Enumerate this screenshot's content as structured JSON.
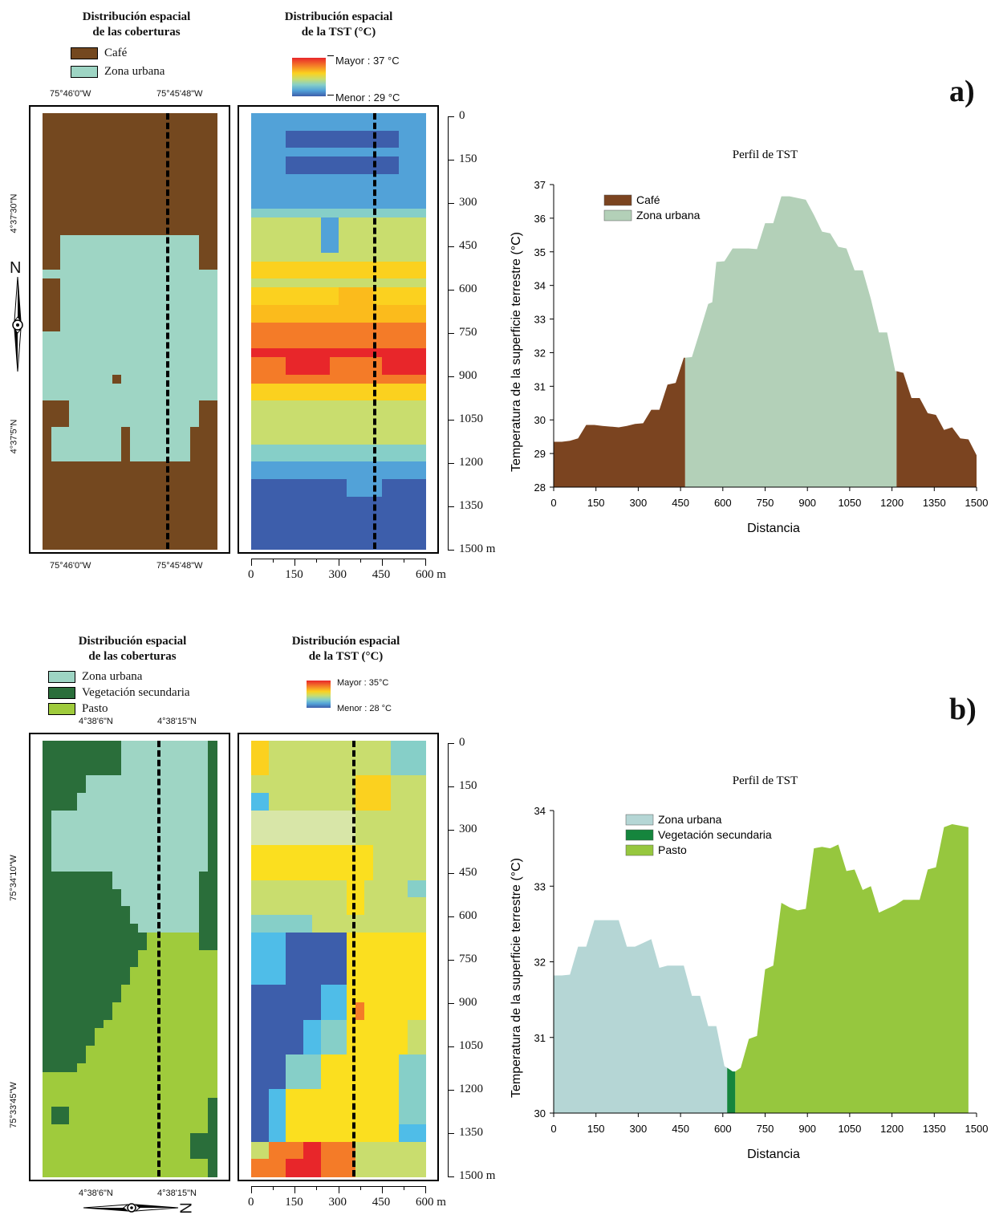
{
  "colors": {
    "cafe": "#74481f",
    "urbana": "#9ed5c4",
    "veg": "#2a6e3a",
    "pasto": "#9fcb3c",
    "profile_cafe": "#7b4420",
    "profile_urbana_a": "#b3d0b8",
    "profile_urbana_b": "#b5d6d5",
    "profile_veg": "#15853d",
    "profile_pasto": "#96c73e"
  },
  "panel_a": {
    "tag": "a)",
    "cover_title_1": "Distribución espacial",
    "cover_title_2": "de las coberturas",
    "tst_title_1": "Distribución espacial",
    "tst_title_2": "de la TST (°C)",
    "legend": [
      {
        "label": "Café",
        "color_key": "cafe"
      },
      {
        "label": "Zona urbana",
        "color_key": "urbana"
      }
    ],
    "ramp_max": "Mayor : 37 °C",
    "ramp_min": "Menor : 29 °C",
    "top_coords": [
      "75°46'0\"W",
      "75°45'48\"W"
    ],
    "bottom_coords": [
      "75°46'0\"W",
      "75°45'48\"W"
    ],
    "left_coords": [
      "4°37'30\"N",
      "4°37'5\"N"
    ],
    "north_label": "N",
    "dist_ticks": [
      "0",
      "150",
      "300",
      "450",
      "600",
      "750",
      "900",
      "1050",
      "1200",
      "1350",
      "1500"
    ],
    "dist_unit": "m",
    "x_ticks": [
      "0",
      "150",
      "300",
      "450",
      "600"
    ],
    "x_unit": "m"
  },
  "panel_b": {
    "tag": "b)",
    "cover_title_1": "Distribución espacial",
    "cover_title_2": "de las coberturas",
    "tst_title_1": "Distribución espacial",
    "tst_title_2": "de la TST (°C)",
    "legend": [
      {
        "label": "Zona urbana",
        "color_key": "urbana"
      },
      {
        "label": "Vegetación secundaria",
        "color_key": "veg"
      },
      {
        "label": "Pasto",
        "color_key": "pasto"
      }
    ],
    "ramp_max": "Mayor : 35°C",
    "ramp_min": "Menor : 28 °C",
    "top_coords": [
      "4°38'6\"N",
      "4°38'15\"N"
    ],
    "bottom_coords": [
      "4°38'6\"N",
      "4°38'15\"N"
    ],
    "left_coords": [
      "75°34'10\"W",
      "75°33'45\"W"
    ],
    "north_label": "N",
    "dist_ticks": [
      "0",
      "150",
      "300",
      "450",
      "600",
      "750",
      "900",
      "1050",
      "1200",
      "1350",
      "1500"
    ],
    "dist_unit": "m",
    "x_ticks": [
      "0",
      "150",
      "300",
      "450",
      "600"
    ],
    "x_unit": "m"
  },
  "chart_data": [
    {
      "type": "area",
      "title": "Perfil de TST",
      "xlabel": "Distancia",
      "ylabel": "Temperatura de la superficie terrestre (°C)",
      "xlim": [
        0,
        1500
      ],
      "ylim": [
        28,
        37
      ],
      "x_ticks": [
        0,
        150,
        300,
        450,
        600,
        750,
        900,
        1050,
        1200,
        1350,
        1500
      ],
      "y_ticks": [
        28,
        29,
        30,
        31,
        32,
        33,
        34,
        35,
        36,
        37
      ],
      "legend_position": "top-left",
      "series": [
        {
          "name": "Café",
          "color_key": "profile_cafe",
          "points": [
            [
              0,
              29.35
            ],
            [
              30,
              29.35
            ],
            [
              60,
              29.38
            ],
            [
              90,
              29.45
            ],
            [
              120,
              29.85
            ],
            [
              150,
              29.85
            ],
            [
              180,
              29.82
            ],
            [
              210,
              29.8
            ],
            [
              240,
              29.78
            ],
            [
              270,
              29.82
            ],
            [
              300,
              29.88
            ],
            [
              330,
              29.9
            ],
            [
              360,
              30.3
            ],
            [
              390,
              30.3
            ],
            [
              420,
              31.05
            ],
            [
              450,
              31.1
            ],
            [
              480,
              31.85
            ],
            [
              485,
              31.85
            ]
          ]
        },
        {
          "name": "Zona urbana",
          "color_key": "profile_urbana_a",
          "points": [
            [
              485,
              31.85
            ],
            [
              510,
              31.87
            ],
            [
              540,
              32.65
            ],
            [
              570,
              33.45
            ],
            [
              585,
              33.5
            ],
            [
              600,
              34.7
            ],
            [
              630,
              34.72
            ],
            [
              660,
              35.1
            ],
            [
              690,
              35.1
            ],
            [
              720,
              35.1
            ],
            [
              750,
              35.08
            ],
            [
              780,
              35.85
            ],
            [
              810,
              35.85
            ],
            [
              840,
              36.65
            ],
            [
              870,
              36.65
            ],
            [
              900,
              36.6
            ],
            [
              930,
              36.55
            ],
            [
              960,
              36.1
            ],
            [
              990,
              35.6
            ],
            [
              1020,
              35.55
            ],
            [
              1050,
              35.15
            ],
            [
              1080,
              35.1
            ],
            [
              1110,
              34.45
            ],
            [
              1140,
              34.45
            ],
            [
              1170,
              33.6
            ],
            [
              1200,
              32.6
            ],
            [
              1230,
              32.6
            ],
            [
              1260,
              31.45
            ],
            [
              1265,
              31.45
            ]
          ]
        },
        {
          "name": "Café",
          "color_key": "profile_cafe",
          "points": [
            [
              1265,
              31.45
            ],
            [
              1290,
              31.4
            ],
            [
              1320,
              30.65
            ],
            [
              1350,
              30.65
            ],
            [
              1380,
              30.2
            ],
            [
              1410,
              30.15
            ],
            [
              1440,
              29.7
            ],
            [
              1470,
              29.78
            ],
            [
              1500,
              29.45
            ],
            [
              1530,
              29.42
            ],
            [
              1560,
              28.95
            ]
          ]
        }
      ]
    },
    {
      "type": "area",
      "title": "Perfil de TST",
      "xlabel": "Distancia",
      "ylabel": "Temperatura de la superficie terrestre (°C)",
      "xlim": [
        0,
        1500
      ],
      "ylim": [
        30,
        34
      ],
      "x_ticks": [
        0,
        150,
        300,
        450,
        600,
        750,
        900,
        1050,
        1200,
        1350,
        1500
      ],
      "y_ticks": [
        30,
        31,
        32,
        33,
        34
      ],
      "legend_position": "top-center",
      "series": [
        {
          "name": "Zona urbana",
          "color_key": "profile_urbana_b",
          "points": [
            [
              0,
              31.82
            ],
            [
              30,
              31.82
            ],
            [
              60,
              31.83
            ],
            [
              90,
              32.2
            ],
            [
              120,
              32.2
            ],
            [
              150,
              32.55
            ],
            [
              180,
              32.55
            ],
            [
              210,
              32.55
            ],
            [
              240,
              32.55
            ],
            [
              270,
              32.2
            ],
            [
              300,
              32.2
            ],
            [
              330,
              32.25
            ],
            [
              360,
              32.3
            ],
            [
              390,
              31.92
            ],
            [
              420,
              31.95
            ],
            [
              450,
              31.95
            ],
            [
              480,
              31.95
            ],
            [
              510,
              31.55
            ],
            [
              540,
              31.55
            ],
            [
              570,
              31.15
            ],
            [
              600,
              31.15
            ],
            [
              630,
              30.62
            ],
            [
              640,
              30.6
            ]
          ]
        },
        {
          "name": "Vegetación secundaria",
          "color_key": "profile_veg",
          "points": [
            [
              640,
              30.6
            ],
            [
              660,
              30.55
            ],
            [
              670,
              30.55
            ]
          ]
        },
        {
          "name": "Pasto",
          "color_key": "profile_pasto",
          "points": [
            [
              670,
              30.55
            ],
            [
              690,
              30.6
            ],
            [
              720,
              30.98
            ],
            [
              750,
              31.02
            ],
            [
              780,
              31.9
            ],
            [
              810,
              31.95
            ],
            [
              840,
              32.78
            ],
            [
              870,
              32.72
            ],
            [
              900,
              32.68
            ],
            [
              930,
              32.7
            ],
            [
              960,
              33.5
            ],
            [
              990,
              33.52
            ],
            [
              1020,
              33.5
            ],
            [
              1050,
              33.55
            ],
            [
              1080,
              33.2
            ],
            [
              1110,
              33.22
            ],
            [
              1140,
              32.95
            ],
            [
              1170,
              33.0
            ],
            [
              1200,
              32.65
            ],
            [
              1230,
              32.7
            ],
            [
              1260,
              32.75
            ],
            [
              1290,
              32.82
            ],
            [
              1320,
              32.82
            ],
            [
              1350,
              32.82
            ],
            [
              1380,
              33.22
            ],
            [
              1410,
              33.25
            ],
            [
              1440,
              33.78
            ],
            [
              1470,
              33.82
            ],
            [
              1500,
              33.8
            ],
            [
              1530,
              33.78
            ]
          ]
        }
      ]
    }
  ]
}
